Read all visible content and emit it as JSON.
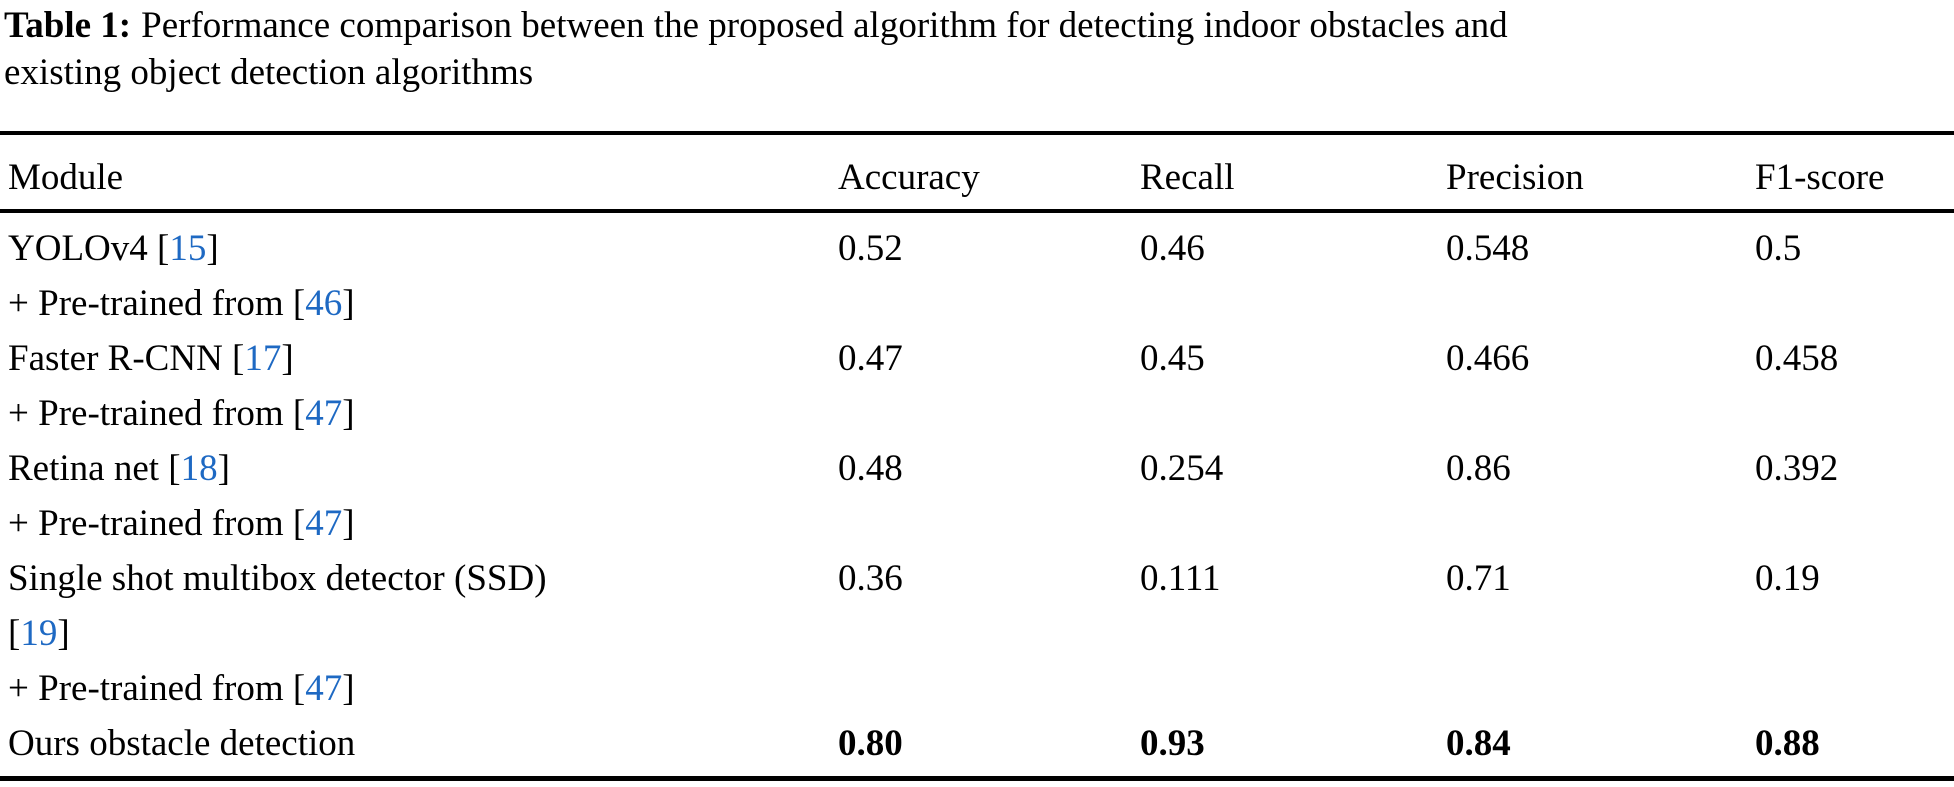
{
  "caption": {
    "label": "Table 1:",
    "line1": "Performance comparison between the proposed algorithm for detecting indoor obstacles and",
    "line2": "existing object detection algorithms"
  },
  "table": {
    "headers": [
      "Module",
      "Accuracy",
      "Recall",
      "Precision",
      "F1-score"
    ],
    "rows": [
      {
        "module_lines": [
          {
            "text": "YOLOv4",
            "cite": "15"
          },
          {
            "text": "+ Pre-trained from",
            "cite": "46"
          }
        ],
        "values": [
          "0.52",
          "0.46",
          "0.548",
          "0.5"
        ],
        "bold_values": false
      },
      {
        "module_lines": [
          {
            "text": "Faster R-CNN",
            "cite": "17"
          },
          {
            "text": "+ Pre-trained from",
            "cite": "47"
          }
        ],
        "values": [
          "0.47",
          "0.45",
          "0.466",
          "0.458"
        ],
        "bold_values": false
      },
      {
        "module_lines": [
          {
            "text": "Retina net",
            "cite": "18"
          },
          {
            "text": "+ Pre-trained from",
            "cite": "47"
          }
        ],
        "values": [
          "0.48",
          "0.254",
          "0.86",
          "0.392"
        ],
        "bold_values": false
      },
      {
        "module_lines": [
          {
            "text": "Single shot multibox detector (SSD)",
            "cite": null
          },
          {
            "text": "",
            "cite": "19"
          },
          {
            "text": "+ Pre-trained from",
            "cite": "47"
          }
        ],
        "values": [
          "0.36",
          "0.111",
          "0.71",
          "0.19"
        ],
        "bold_values": false
      },
      {
        "module_lines": [
          {
            "text": "Ours obstacle detection",
            "cite": null
          }
        ],
        "values": [
          "0.80",
          "0.93",
          "0.84",
          "0.88"
        ],
        "bold_values": true
      }
    ]
  },
  "colors": {
    "citation_blue": "#1e69c3",
    "text": "#000000",
    "rule": "#000000",
    "background": "#ffffff"
  }
}
